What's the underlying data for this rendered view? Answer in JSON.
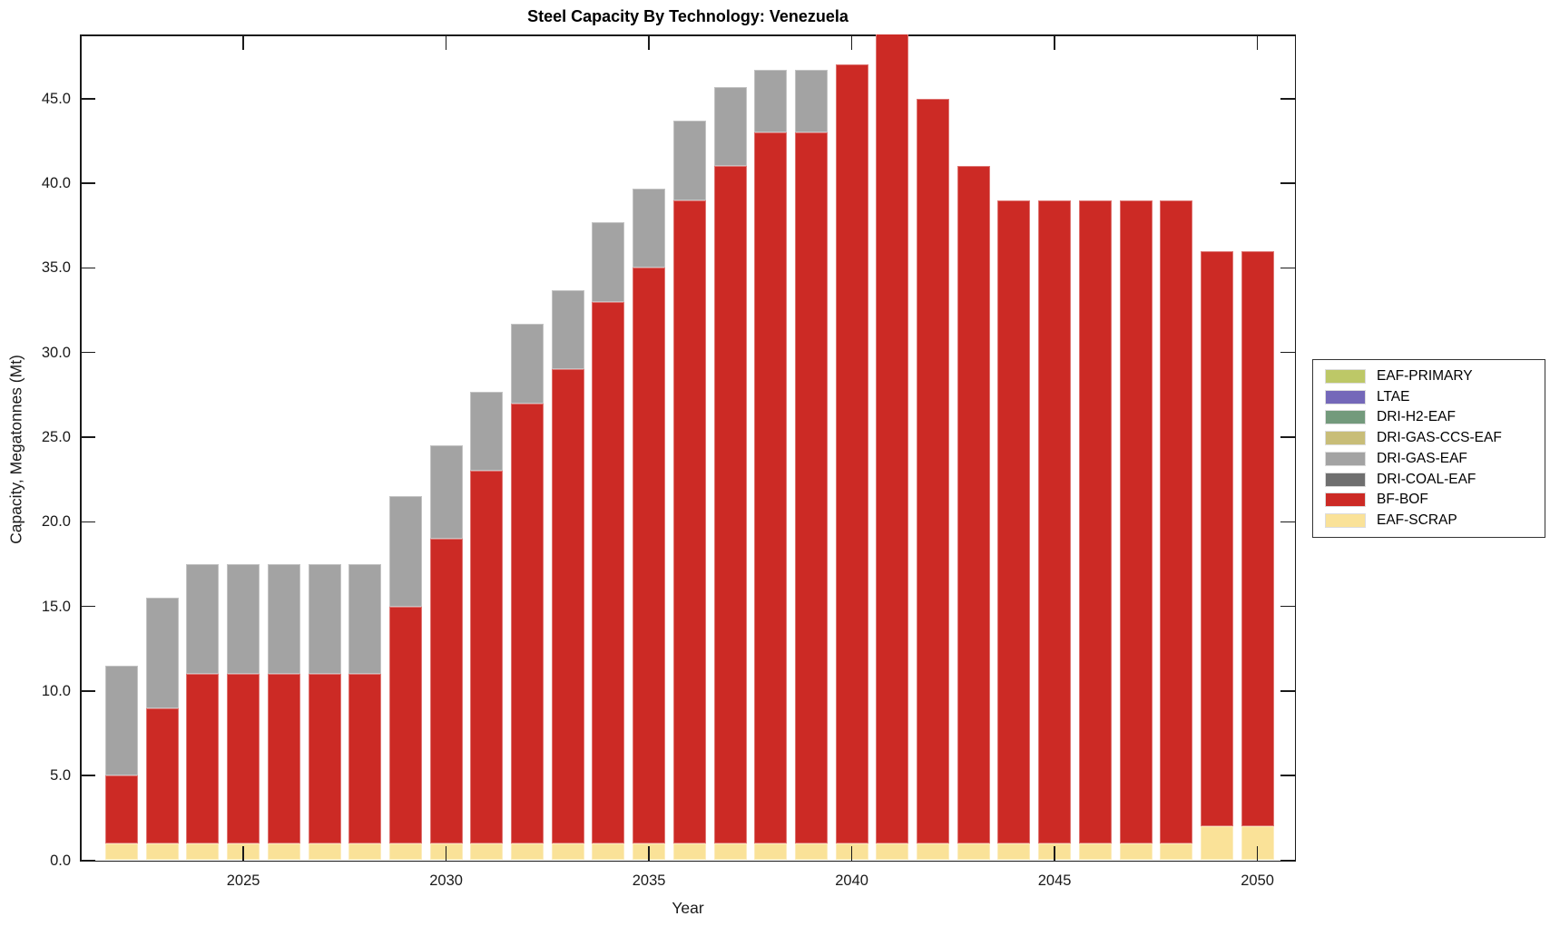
{
  "title": "Steel Capacity By Technology: Venezuela",
  "chart_data": {
    "type": "bar",
    "stacked": true,
    "title": "Steel Capacity By Technology: Venezuela",
    "xlabel": "Year",
    "ylabel": "Capacity, Megatonnes (Mt)",
    "grid": false,
    "legend_position": "right-outside",
    "ylim": [
      0,
      48.9
    ],
    "xlim": [
      2021.5,
      2050.8
    ],
    "ytick_interval": 5,
    "ytick_labels": [
      "0.0",
      "5.0",
      "10.0",
      "15.0",
      "20.0",
      "25.0",
      "30.0",
      "35.0",
      "40.0",
      "45.0"
    ],
    "xticks": [
      2025,
      2030,
      2035,
      2040,
      2045,
      2050
    ],
    "xtick_labels": [
      "2025",
      "2030",
      "2035",
      "2040",
      "2045",
      "2050"
    ],
    "years": [
      2022,
      2023,
      2024,
      2025,
      2026,
      2027,
      2028,
      2029,
      2030,
      2031,
      2032,
      2033,
      2034,
      2035,
      2036,
      2037,
      2038,
      2039,
      2040,
      2041,
      2042,
      2043,
      2044,
      2045,
      2046,
      2047,
      2048,
      2049,
      2050
    ],
    "series": [
      {
        "name": "EAF-SCRAP",
        "color": "#fae298",
        "values": [
          1,
          1,
          1,
          1,
          1,
          1,
          1,
          1,
          1,
          1,
          1,
          1,
          1,
          1,
          1,
          1,
          1,
          1,
          1,
          1,
          1,
          1,
          1,
          1,
          1,
          1,
          1,
          2,
          2
        ]
      },
      {
        "name": "BF-BOF",
        "color": "#cc2a25",
        "values": [
          4,
          8,
          10,
          10,
          10,
          10,
          10,
          14,
          18,
          22,
          26,
          28,
          32,
          34,
          38,
          40,
          42,
          42,
          46,
          49,
          44,
          40,
          38,
          38,
          38,
          38,
          38,
          34,
          34
        ]
      },
      {
        "name": "DRI-COAL-EAF",
        "color": "#6f6f6f",
        "values": [
          0,
          0,
          0,
          0,
          0,
          0,
          0,
          0,
          0,
          0,
          0,
          0,
          0,
          0,
          0,
          0,
          0,
          0,
          0,
          0,
          0,
          0,
          0,
          0,
          0,
          0,
          0,
          0,
          0
        ]
      },
      {
        "name": "DRI-GAS-EAF",
        "color": "#a3a3a3",
        "values": [
          6.5,
          6.5,
          6.5,
          6.5,
          6.5,
          6.5,
          6.5,
          6.5,
          5.5,
          4.7,
          4.7,
          4.7,
          4.7,
          4.7,
          4.7,
          4.7,
          3.7,
          3.7,
          0,
          0,
          0,
          0,
          0,
          0,
          0,
          0,
          0,
          0,
          0
        ]
      },
      {
        "name": "DRI-GAS-CCS-EAF",
        "color": "#c8bd78",
        "values": [
          0,
          0,
          0,
          0,
          0,
          0,
          0,
          0,
          0,
          0,
          0,
          0,
          0,
          0,
          0,
          0,
          0,
          0,
          0,
          0,
          0,
          0,
          0,
          0,
          0,
          0,
          0,
          0,
          0
        ]
      },
      {
        "name": "DRI-H2-EAF",
        "color": "#739a7c",
        "values": [
          0,
          0,
          0,
          0,
          0,
          0,
          0,
          0,
          0,
          0,
          0,
          0,
          0,
          0,
          0,
          0,
          0,
          0,
          0,
          0,
          0,
          0,
          0,
          0,
          0,
          0,
          0,
          0,
          0
        ]
      },
      {
        "name": "LTAE",
        "color": "#7468b9",
        "values": [
          0,
          0,
          0,
          0,
          0,
          0,
          0,
          0,
          0,
          0,
          0,
          0,
          0,
          0,
          0,
          0,
          0,
          0,
          0,
          0,
          0,
          0,
          0,
          0,
          0,
          0,
          0,
          0,
          0
        ]
      },
      {
        "name": "EAF-PRIMARY",
        "color": "#bdc867",
        "values": [
          0,
          0,
          0,
          0,
          0,
          0,
          0,
          0,
          0,
          0,
          0,
          0,
          0,
          0,
          0,
          0,
          0,
          0,
          0,
          0,
          0,
          0,
          0,
          0,
          0,
          0,
          0,
          0,
          0
        ]
      }
    ],
    "legend_order": [
      "EAF-PRIMARY",
      "LTAE",
      "DRI-H2-EAF",
      "DRI-GAS-CCS-EAF",
      "DRI-GAS-EAF",
      "DRI-COAL-EAF",
      "BF-BOF",
      "EAF-SCRAP"
    ]
  }
}
